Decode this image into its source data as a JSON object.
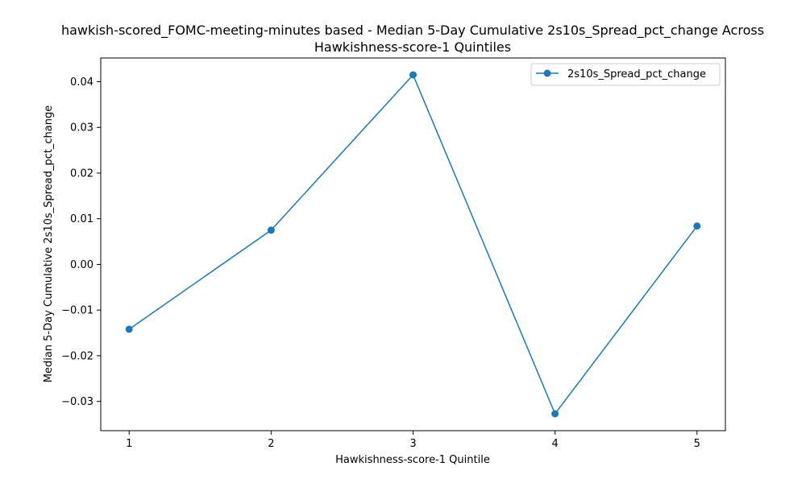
{
  "chart_data": {
    "type": "line",
    "title_line1": "hawkish-scored_FOMC-meeting-minutes based - Median 5-Day Cumulative 2s10s_Spread_pct_change Across",
    "title_line2": "Hawkishness-score-1 Quintiles",
    "xlabel": "Hawkishness-score-1 Quintile",
    "ylabel": "Median 5-Day Cumulative 2s10s_Spread_pct_change",
    "x": [
      1,
      2,
      3,
      4,
      5
    ],
    "xlim": [
      0.8,
      5.2
    ],
    "ylim": [
      -0.0364,
      0.0452
    ],
    "x_ticks": [
      "1",
      "2",
      "3",
      "4",
      "5"
    ],
    "y_ticks": [
      -0.03,
      -0.02,
      -0.01,
      0.0,
      0.01,
      0.02,
      0.03,
      0.04
    ],
    "y_tick_labels": [
      "−0.03",
      "−0.02",
      "−0.01",
      "0.00",
      "0.01",
      "0.02",
      "0.03",
      "0.04"
    ],
    "grid": false,
    "legend_position": "upper right",
    "series": [
      {
        "name": "2s10s_Spread_pct_change",
        "color": "#1f77b4",
        "marker": "circle",
        "values": [
          -0.0142,
          0.0075,
          0.0415,
          -0.0327,
          0.0084
        ]
      }
    ]
  }
}
